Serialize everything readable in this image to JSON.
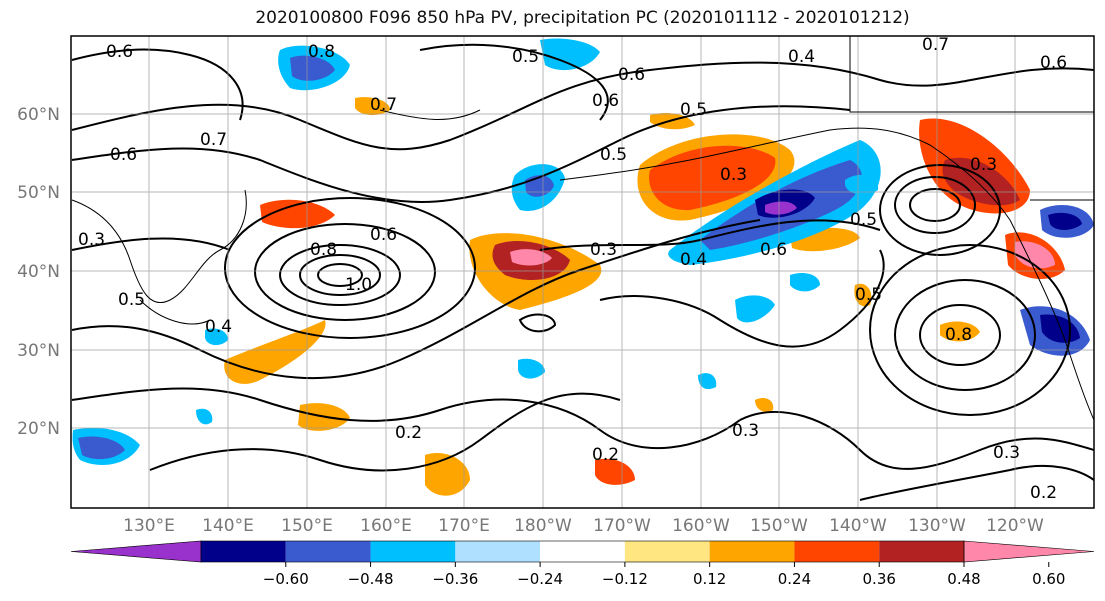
{
  "title": "2020100800 F096 850 hPa PV, precipitation PC (2020101112 - 2020101212)",
  "lat_labels": [
    "60°N",
    "50°N",
    "40°N",
    "30°N",
    "20°N"
  ],
  "lon_labels": [
    "130°E",
    "140°E",
    "150°E",
    "160°E",
    "170°E",
    "180°W",
    "170°W",
    "160°W",
    "150°W",
    "140°W",
    "130°W",
    "120°W"
  ],
  "colorbar": {
    "ticks": [
      "−0.60",
      "−0.48",
      "−0.36",
      "−0.24",
      "−0.12",
      "0.12",
      "0.24",
      "0.36",
      "0.48",
      "0.60"
    ],
    "colors": [
      "#9932cc",
      "#00008b",
      "#3a5bd0",
      "#00bfff",
      "#b0e0ff",
      "#ffffff",
      "#ffe680",
      "#ffa500",
      "#ff4500",
      "#b22222",
      "#ff88aa"
    ]
  },
  "contour_labels": [
    "0.6",
    "0.8",
    "0.7",
    "0.5",
    "0.4",
    "0.6",
    "0.5",
    "0.3",
    "0.6",
    "0.5",
    "0.4",
    "0.6",
    "0.5",
    "0.3",
    "0.8",
    "0.6",
    "1.0",
    "0.3",
    "0.5",
    "0.4",
    "0.2",
    "0.2",
    "0.3",
    "0.3",
    "0.8",
    "0.7",
    "0.6",
    "0.2",
    "0.3",
    "0.5",
    "0.7",
    "0.6"
  ]
}
